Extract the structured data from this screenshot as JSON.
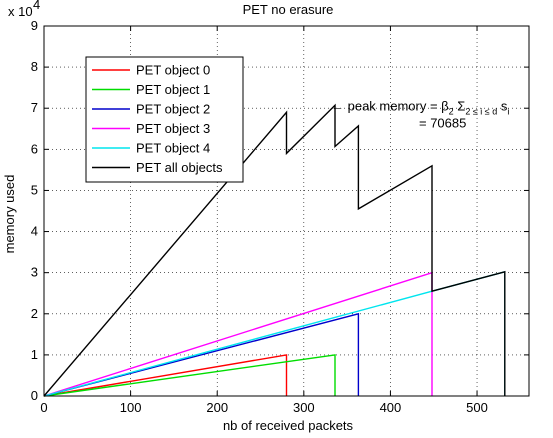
{
  "chart_data": {
    "type": "line",
    "title": "PET no erasure",
    "xlabel": "nb of received packets",
    "ylabel": "memory used",
    "y_exponent_label": "x 10",
    "y_exponent_power": "4",
    "xlim": [
      0,
      560
    ],
    "ylim": [
      0,
      9
    ],
    "xticks": [
      0,
      100,
      200,
      300,
      400,
      500
    ],
    "yticks": [
      0,
      1,
      2,
      3,
      4,
      5,
      6,
      7,
      8,
      9
    ],
    "grid": true,
    "legend_position": "top-left",
    "series": [
      {
        "name": "PET object 0",
        "color": "#ff0000",
        "points": [
          [
            0,
            0
          ],
          [
            280,
            1.0
          ],
          [
            280,
            0
          ]
        ]
      },
      {
        "name": "PET object 1",
        "color": "#00dd00",
        "points": [
          [
            0,
            0
          ],
          [
            336,
            1.0
          ],
          [
            336,
            0
          ]
        ]
      },
      {
        "name": "PET object 2",
        "color": "#0000cc",
        "points": [
          [
            0,
            0
          ],
          [
            363,
            2.0
          ],
          [
            363,
            0
          ]
        ]
      },
      {
        "name": "PET object 3",
        "color": "#ff00ff",
        "points": [
          [
            0,
            0
          ],
          [
            448,
            3.0
          ],
          [
            448,
            0
          ]
        ]
      },
      {
        "name": "PET object 4",
        "color": "#00e5ee",
        "points": [
          [
            0,
            0
          ],
          [
            448,
            2.55
          ],
          [
            532,
            3.02
          ],
          [
            532,
            0
          ]
        ]
      },
      {
        "name": "PET all objects",
        "color": "#000000",
        "points": [
          [
            0,
            0
          ],
          [
            280,
            6.9
          ],
          [
            280,
            5.9
          ],
          [
            336,
            7.07
          ],
          [
            336,
            6.07
          ],
          [
            363,
            6.57
          ],
          [
            363,
            4.55
          ],
          [
            448,
            5.6
          ],
          [
            448,
            2.55
          ],
          [
            532,
            3.02
          ],
          [
            532,
            0
          ]
        ]
      }
    ],
    "annotation": {
      "arrow": "←",
      "text_main": "peak memory = β",
      "sub_2": "2",
      "sigma": "Σ",
      "sub_range": "2 ≤ i ≤ d",
      "s": "s",
      "sub_i": "i",
      "value_line": "= 70685",
      "x": 336,
      "y": 7.07
    }
  }
}
